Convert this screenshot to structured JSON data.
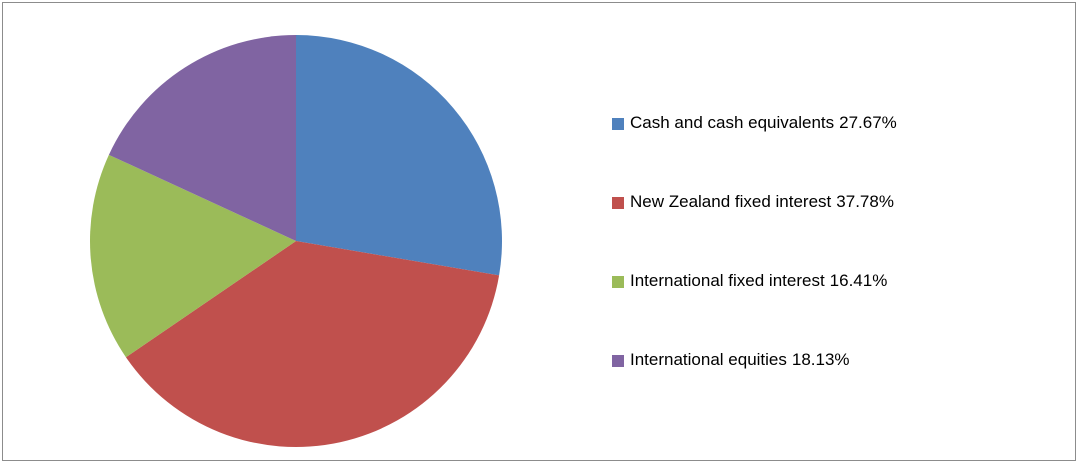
{
  "chart_data": {
    "type": "pie",
    "categories": [
      "Cash and cash equivalents",
      "New Zealand fixed interest",
      "International fixed interest",
      "International equities"
    ],
    "values": [
      27.67,
      37.78,
      16.41,
      18.13
    ],
    "value_labels": [
      "27.67%",
      "37.78%",
      "16.41%",
      "18.13%"
    ],
    "colors": [
      "#4f81bd",
      "#c0504d",
      "#9bbb59",
      "#8064a2"
    ],
    "legend": "right"
  }
}
